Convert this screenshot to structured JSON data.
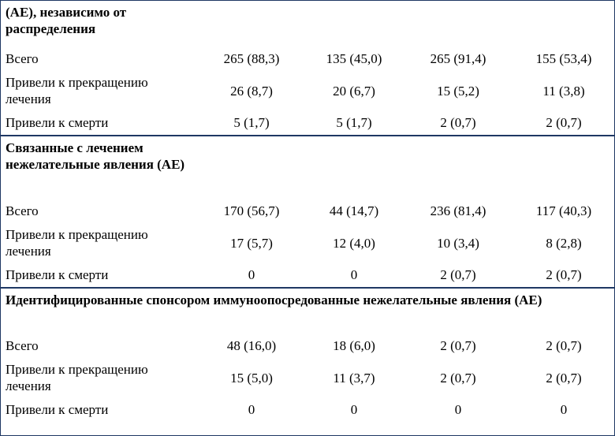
{
  "sections": [
    {
      "title": "(AE), независимо от распределения",
      "rows": [
        {
          "label": "Всего",
          "values": [
            "265 (88,3)",
            "135 (45,0)",
            "265 (91,4)",
            "155 (53,4)"
          ]
        },
        {
          "label": "Привели к прекращению лечения",
          "values": [
            "26 (8,7)",
            "20 (6,7)",
            "15 (5,2)",
            "11 (3,8)"
          ]
        },
        {
          "label": "Привели к смерти",
          "values": [
            "5 (1,7)",
            "5 (1,7)",
            "2 (0,7)",
            "2 (0,7)"
          ]
        }
      ]
    },
    {
      "title": "Связанные с лечением нежелательные явления (AE)",
      "rows": [
        {
          "label": "Всего",
          "values": [
            "170 (56,7)",
            "44 (14,7)",
            "236 (81,4)",
            "117 (40,3)"
          ]
        },
        {
          "label": "Привели к прекращению лечения",
          "values": [
            "17 (5,7)",
            "12 (4,0)",
            "10 (3,4)",
            "8 (2,8)"
          ]
        },
        {
          "label": "Привели к смерти",
          "values": [
            "0",
            "0",
            "2 (0,7)",
            "2 (0,7)"
          ]
        }
      ]
    },
    {
      "title": "Идентифицированные спонсором иммуноопосредованные нежелательные явления (AE)",
      "rows": [
        {
          "label": "Всего",
          "values": [
            "48 (16,0)",
            "18 (6,0)",
            "2 (0,7)",
            "2 (0,7)"
          ]
        },
        {
          "label": "Привели к прекращению лечения",
          "values": [
            "15 (5,0)",
            "11 (3,7)",
            "2 (0,7)",
            "2 (0,7)"
          ]
        },
        {
          "label": "Привели к смерти",
          "values": [
            "0",
            "0",
            "0",
            "0"
          ]
        }
      ]
    }
  ],
  "colors": {
    "border": "#1f3864"
  }
}
